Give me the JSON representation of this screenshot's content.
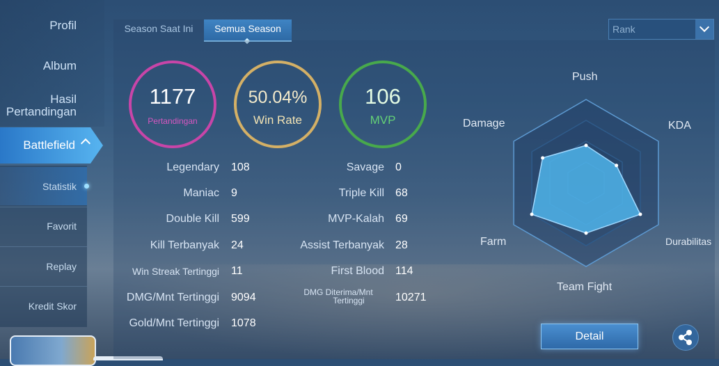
{
  "sidebar": {
    "profil": "Profil",
    "album": "Album",
    "hasil_line1": "Hasil",
    "hasil_line2": "Pertandingan",
    "battlefield": "Battlefield",
    "sub_items": [
      "Statistik",
      "Favorit",
      "Replay",
      "Kredit Skor"
    ]
  },
  "tabs": {
    "current": "Season Saat Ini",
    "all": "Semua Season"
  },
  "rank_select": {
    "value": "Rank"
  },
  "summary": {
    "matches": {
      "value": "1177",
      "label": "Pertandingan"
    },
    "winrate": {
      "value": "50.04%",
      "label": "Win Rate"
    },
    "mvp": {
      "value": "106",
      "label": "MVP"
    }
  },
  "stats_left": [
    {
      "label": "Legendary",
      "value": "108"
    },
    {
      "label": "Maniac",
      "value": "9"
    },
    {
      "label": "Double Kill",
      "value": "599"
    },
    {
      "label": "Kill Terbanyak",
      "value": "24"
    },
    {
      "label": "Win Streak Tertinggi",
      "value": "11"
    },
    {
      "label": "DMG/Mnt Tertinggi",
      "value": "9094"
    },
    {
      "label": "Gold/Mnt Tertinggi",
      "value": "1078"
    }
  ],
  "stats_right": [
    {
      "label": "Savage",
      "value": "0"
    },
    {
      "label": "Triple Kill",
      "value": "68"
    },
    {
      "label": "MVP-Kalah",
      "value": "69"
    },
    {
      "label": "Assist Terbanyak",
      "value": "28"
    },
    {
      "label": "First Blood",
      "value": "114"
    },
    {
      "label_line1": "DMG Diterima/Mnt",
      "label_line2": "Tertinggi",
      "value": "10271"
    }
  ],
  "radar": {
    "labels": {
      "push": "Push",
      "kda": "KDA",
      "durability": "Durabilitas",
      "teamfight": "Team Fight",
      "farm": "Farm",
      "damage": "Damage"
    },
    "levels": {
      "push": 0.45,
      "kda": 0.42,
      "durability": 0.75,
      "teamfight": 0.6,
      "farm": 0.75,
      "damage": 0.6
    },
    "fill_color": "#4fb4ea"
  },
  "buttons": {
    "detail": "Detail"
  },
  "icons": {
    "share": "share-icon",
    "dropdown": "chevron-down-icon",
    "collapse": "chevron-up-icon"
  }
}
